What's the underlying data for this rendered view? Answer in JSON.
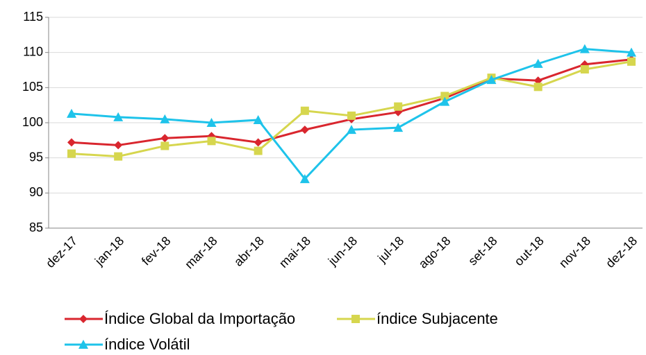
{
  "chart_data": {
    "type": "line",
    "categories": [
      "dez-17",
      "jan-18",
      "fev-18",
      "mar-18",
      "abr-18",
      "mai-18",
      "jun-18",
      "jul-18",
      "ago-18",
      "set-18",
      "out-18",
      "nov-18",
      "dez-18"
    ],
    "series": [
      {
        "name": "Índice Global da Importação",
        "color": "#d9262e",
        "marker": "diamond",
        "values": [
          97.2,
          96.8,
          97.8,
          98.1,
          97.2,
          99.0,
          100.5,
          101.5,
          103.5,
          106.3,
          106.0,
          108.3,
          109.0
        ]
      },
      {
        "name": "índice Subjacente",
        "color": "#d6d64e",
        "marker": "square",
        "values": [
          95.6,
          95.2,
          96.7,
          97.4,
          96.0,
          101.7,
          101.0,
          102.3,
          103.8,
          106.4,
          105.1,
          107.6,
          108.7
        ]
      },
      {
        "name": "índice Volátil",
        "color": "#1ec3ea",
        "marker": "triangle",
        "values": [
          101.3,
          100.8,
          100.5,
          100.0,
          100.4,
          92.0,
          99.0,
          99.3,
          103.0,
          106.1,
          108.4,
          110.5,
          110.0
        ]
      }
    ],
    "ylim": [
      85,
      115
    ],
    "yticks": [
      85,
      90,
      95,
      100,
      105,
      110,
      115
    ],
    "grid": true
  }
}
